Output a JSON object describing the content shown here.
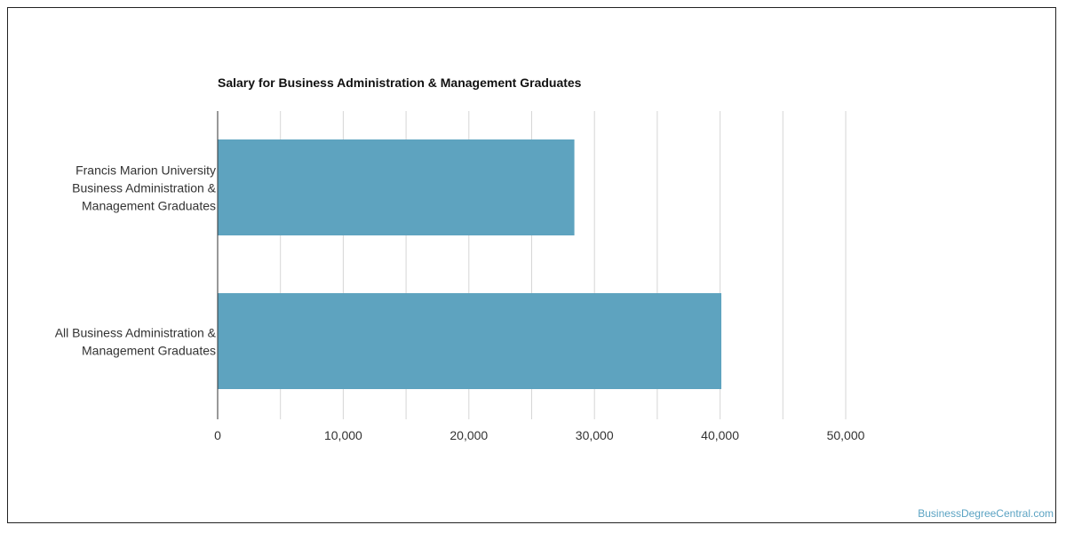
{
  "chart_data": {
    "type": "bar",
    "orientation": "horizontal",
    "title": "Salary for Business Administration & Management Graduates",
    "categories": [
      [
        "Francis Marion University",
        "Business Administration &",
        "Management Graduates"
      ],
      [
        "All Business Administration &",
        "Management Graduates"
      ]
    ],
    "values": [
      28400,
      40100
    ],
    "xlim": [
      0,
      50000
    ],
    "xticks": [
      0,
      10000,
      20000,
      30000,
      40000,
      50000
    ],
    "xtick_labels": [
      "0",
      "10,000",
      "20,000",
      "30,000",
      "40,000",
      "50,000"
    ],
    "grid": true,
    "bar_color": "#5ea3bf",
    "grid_color": "#d6d6d6"
  },
  "watermark": "BusinessDegreeCentral.com"
}
